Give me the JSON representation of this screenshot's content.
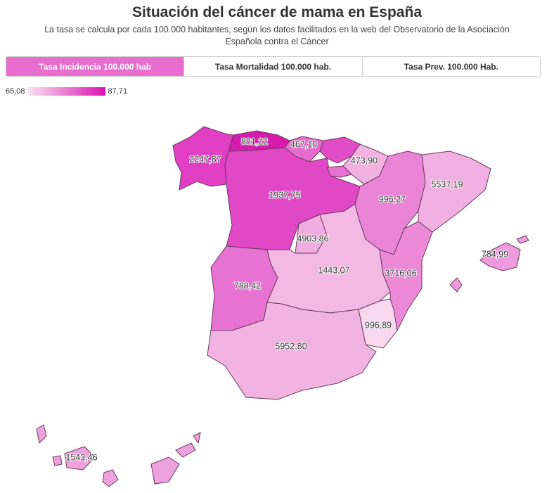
{
  "header": {
    "title": "Situación del cáncer de mama en España",
    "subtitle": "La tasa se calcula por cada 100.000 habitantes, según los datos facilitados en la web del Observatorio de la Asociación Española contra el Cáncer"
  },
  "tabs": [
    "Tasa Incidencia 100.000 hab",
    "Tasa Mortalidad 100.000 hab.",
    "Tasa Prev. 100.000 Hab."
  ],
  "legend": {
    "min": "65,08",
    "max": "87,71",
    "color_min": "#f8e2f3",
    "color_max": "#dc12b0"
  },
  "regions": [
    {
      "label": "2247,87",
      "color": "#e03fc3"
    },
    {
      "label": "881,22",
      "color": "#d61aae"
    },
    {
      "label": "467,10",
      "color": "#e86ccf"
    },
    {
      "label": null,
      "color": "#e04cc6"
    },
    {
      "label": "473,90",
      "color": "#f1b2e2"
    },
    {
      "label": "1937,75",
      "color": "#e048c5"
    },
    {
      "label": "4903,86",
      "color": "#f0aee0"
    },
    {
      "label": null,
      "color": "#e870d0"
    },
    {
      "label": "996,27",
      "color": "#ea84d6"
    },
    {
      "label": "5537,19",
      "color": "#f1b0e1"
    },
    {
      "label": "788,42",
      "color": "#e872d1"
    },
    {
      "label": "1443,07",
      "color": "#f3b8e4"
    },
    {
      "label": "3716,06",
      "color": "#ec8ad8"
    },
    {
      "label": "996,89",
      "color": "#f7d8f0"
    },
    {
      "label": "5952,80",
      "color": "#f1b4e2"
    },
    {
      "label": "784,99",
      "color": "#ee9adc"
    },
    {
      "label": "1543,46",
      "color": "#eea2dd"
    }
  ]
}
